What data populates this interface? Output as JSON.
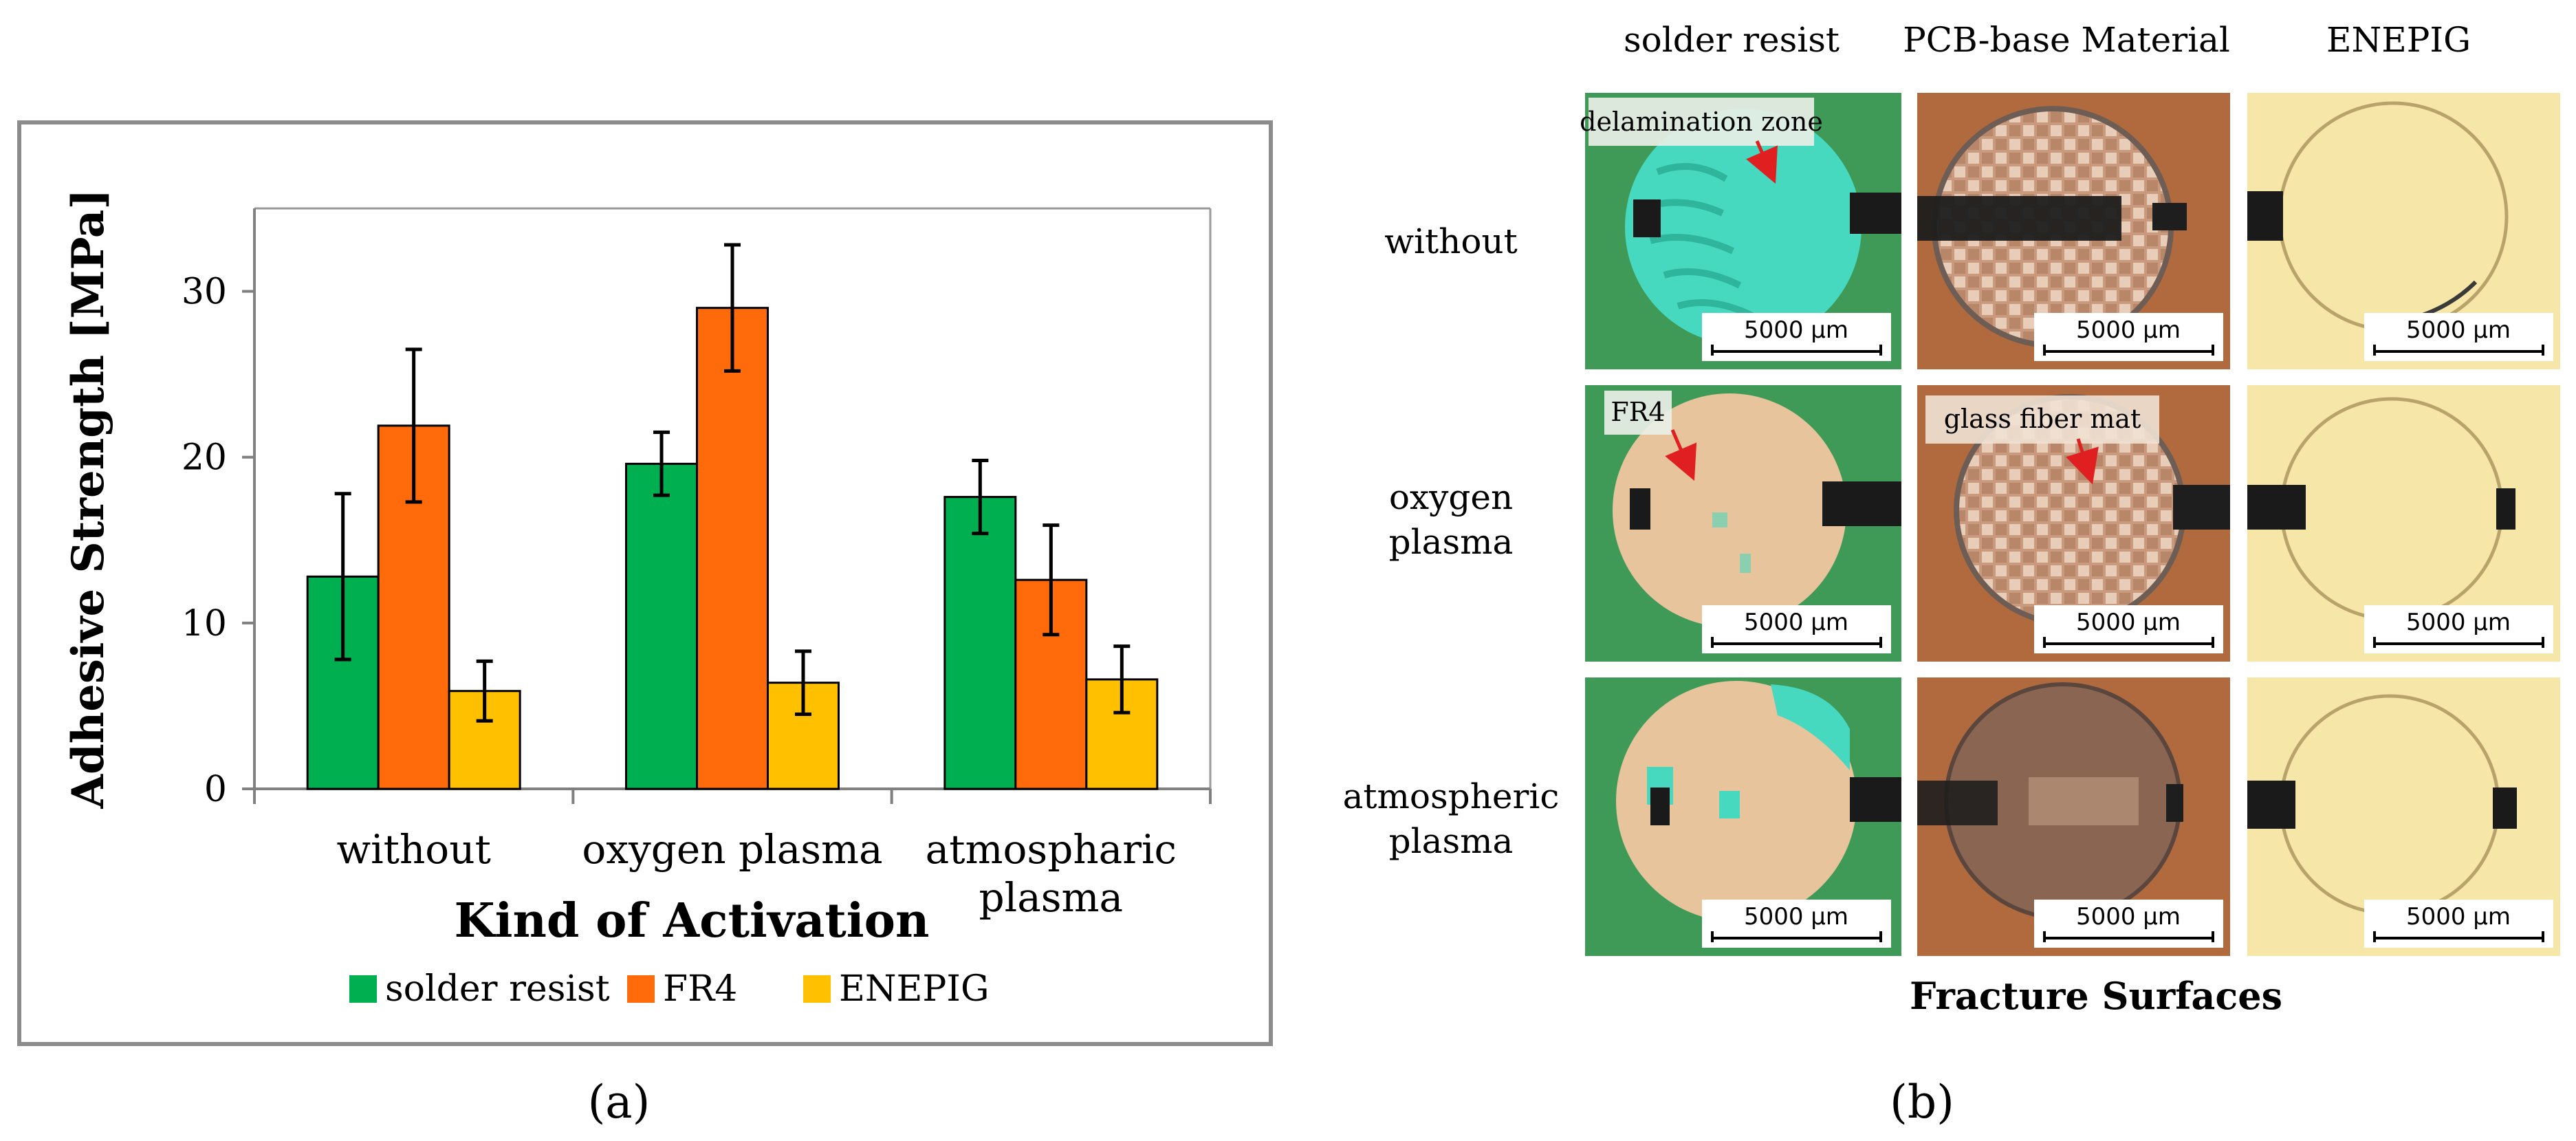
{
  "colors": {
    "solder_resist": "#00b050",
    "fr4": "#ff6a0a",
    "enepig": "#ffc000",
    "frame": "#8c8c8c",
    "axis": "#808080"
  },
  "panel_a_label": "(a)",
  "panel_b_label": "(b)",
  "chart_data": {
    "type": "bar",
    "title": "",
    "xlabel": "Kind of Activation",
    "ylabel": "Adhesive Strength [MPa]",
    "ylim": [
      0,
      35
    ],
    "yticks": [
      0,
      10,
      20,
      30
    ],
    "categories": [
      {
        "line1": "without",
        "line2": ""
      },
      {
        "line1": "oxygen plasma",
        "line2": ""
      },
      {
        "line1": "atmospharic",
        "line2": "plasma"
      }
    ],
    "series": [
      {
        "name": "solder resist",
        "color": "#00b050",
        "values": [
          12.8,
          19.6,
          17.6
        ],
        "errors": [
          5.0,
          1.9,
          2.2
        ]
      },
      {
        "name": "FR4",
        "color": "#ff6a0a",
        "values": [
          21.9,
          29.0,
          12.6
        ],
        "errors": [
          4.6,
          3.8,
          3.3
        ]
      },
      {
        "name": "ENEPIG",
        "color": "#ffc000",
        "values": [
          5.9,
          6.4,
          6.6
        ],
        "errors": [
          1.8,
          1.9,
          2.0
        ]
      }
    ],
    "legend": [
      "solder resist",
      "FR4",
      "ENEPIG"
    ],
    "legend_position": "bottom",
    "grid": false
  },
  "fracture": {
    "columns": [
      "solder resist",
      "PCB-base Material",
      "ENEPIG"
    ],
    "rows": [
      {
        "line1": "without",
        "line2": ""
      },
      {
        "line1": "oxygen",
        "line2": "plasma"
      },
      {
        "line1": "atmospheric",
        "line2": "plasma"
      }
    ],
    "scale_bar_label": "5000 µm",
    "annotations": {
      "delamination": "delamination zone",
      "fr4": "FR4",
      "glass_fiber": "glass fiber mat"
    },
    "caption": "Fracture Surfaces"
  }
}
